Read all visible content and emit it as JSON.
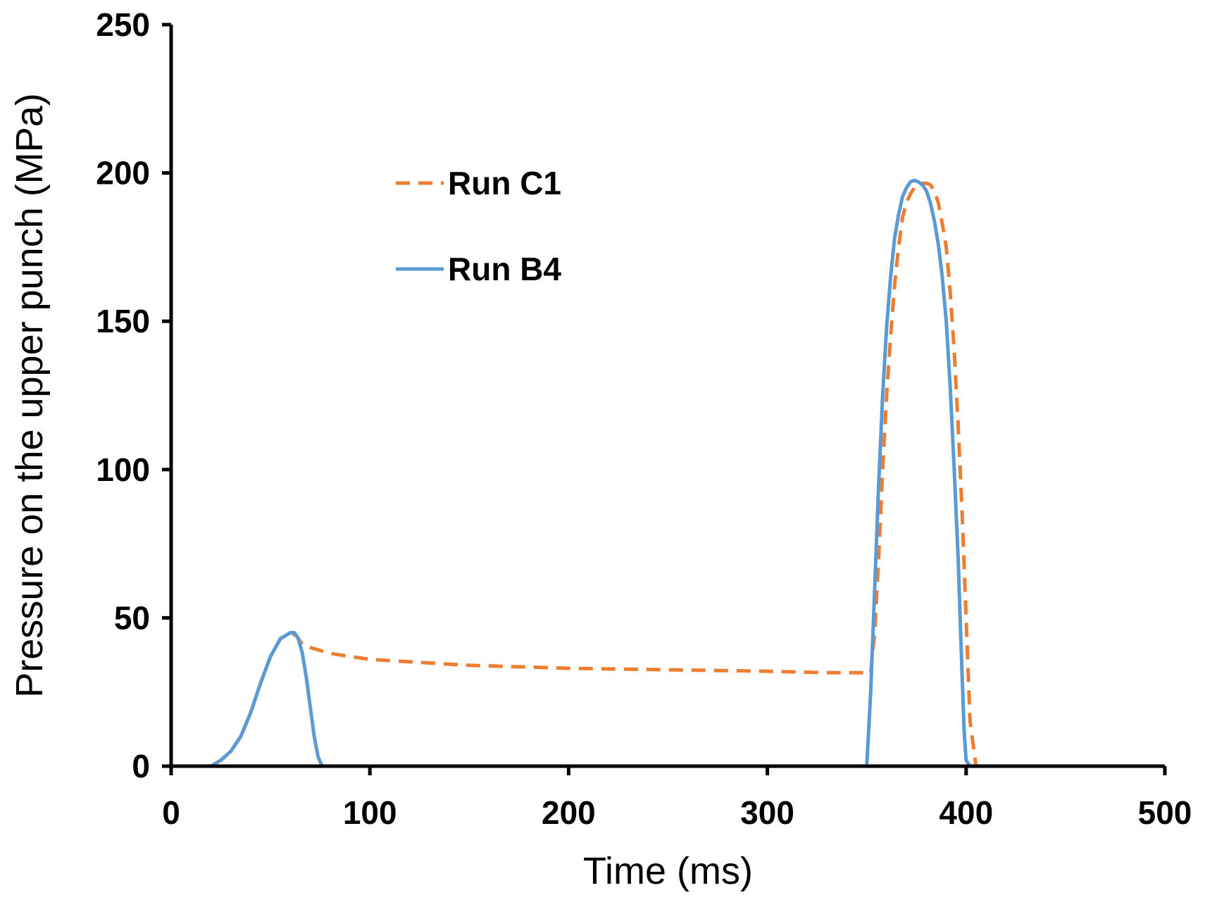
{
  "chart_data": {
    "type": "line",
    "xlabel": "Time (ms)",
    "ylabel": "Pressure on the upper punch (MPa)",
    "xlim": [
      0,
      500
    ],
    "ylim": [
      0,
      250
    ],
    "xticks": [
      0,
      100,
      200,
      300,
      400,
      500
    ],
    "yticks": [
      0,
      50,
      100,
      150,
      200,
      250
    ],
    "grid": false,
    "legend_position": "upper-left",
    "series": [
      {
        "name": "Run C1",
        "color": "#ED7D31",
        "style": "dashed",
        "x": [
          0,
          20,
          25,
          30,
          35,
          40,
          45,
          50,
          55,
          60,
          63,
          66,
          70,
          80,
          100,
          150,
          200,
          250,
          300,
          330,
          352,
          354,
          356,
          358,
          360,
          362,
          364,
          366,
          368,
          370,
          372,
          374,
          376,
          378,
          380,
          382,
          384,
          386,
          388,
          390,
          392,
          394,
          396,
          398,
          400,
          402,
          405,
          420,
          445
        ],
        "y": [
          0,
          0,
          2,
          5,
          10,
          18,
          28,
          37,
          43,
          45,
          44,
          41,
          40,
          38,
          36,
          34,
          33,
          32.5,
          32,
          31.5,
          31.5,
          45,
          70,
          100,
          125,
          145,
          162,
          175,
          185,
          190,
          193,
          195,
          196,
          196.5,
          196.5,
          196,
          194,
          190,
          183,
          175,
          160,
          140,
          115,
          85,
          50,
          15,
          0,
          0,
          0
        ]
      },
      {
        "name": "Run B4",
        "color": "#5B9BD5",
        "style": "solid",
        "x": [
          0,
          20,
          25,
          30,
          35,
          40,
          45,
          50,
          55,
          60,
          62,
          64,
          66,
          68,
          70,
          72,
          74,
          76,
          78,
          100,
          200,
          300,
          350,
          352,
          354,
          356,
          358,
          360,
          362,
          364,
          366,
          368,
          370,
          372,
          374,
          376,
          378,
          380,
          382,
          384,
          386,
          388,
          390,
          392,
          394,
          396,
          397,
          398,
          399,
          400,
          402,
          445
        ],
        "y": [
          0,
          0,
          2,
          5,
          10,
          18,
          28,
          37,
          43,
          45,
          45,
          43,
          38,
          30,
          20,
          10,
          3,
          0,
          0,
          0,
          0,
          0,
          0,
          25,
          60,
          95,
          125,
          148,
          165,
          178,
          186,
          192,
          195,
          197,
          197.5,
          197,
          196,
          194,
          190,
          184,
          176,
          165,
          150,
          128,
          100,
          70,
          50,
          30,
          12,
          2,
          0,
          0
        ]
      }
    ]
  }
}
